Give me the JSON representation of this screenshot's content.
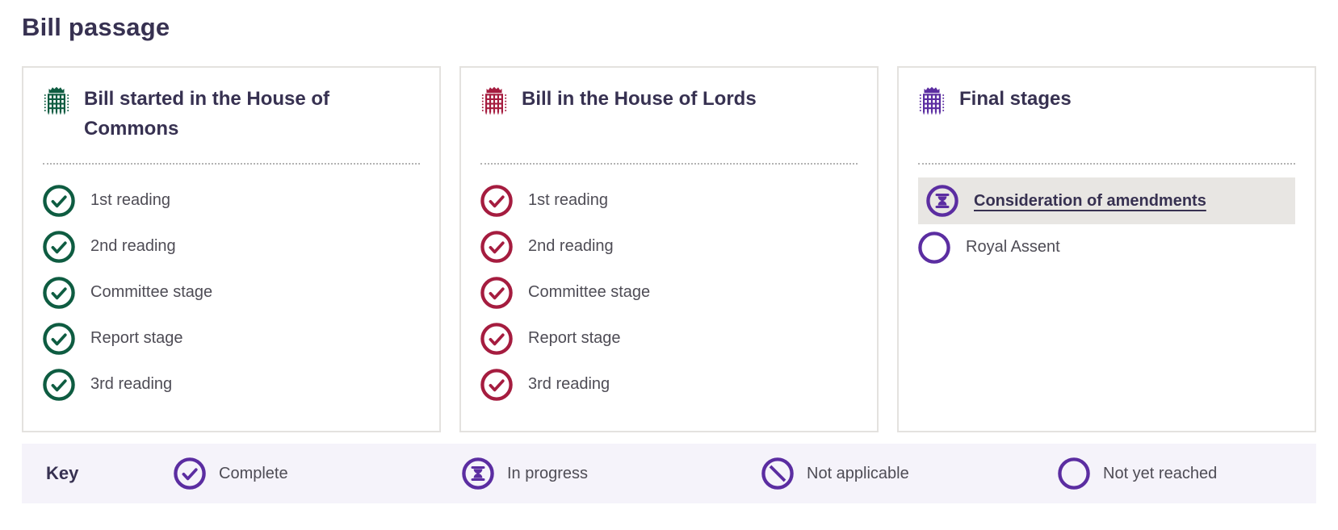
{
  "page": {
    "title": "Bill passage"
  },
  "colors": {
    "commons_green": "#0e5c41",
    "lords_red": "#a51c3f",
    "royal_purple": "#5b2da1",
    "heading_navy": "#373151",
    "body_gray": "#4e4c55",
    "highlight_gray": "#e8e6e3",
    "key_bar_lavender": "#f5f3fa"
  },
  "cards": [
    {
      "title": "Bill started in the House of Commons",
      "accent": "commons_green",
      "house_icon": "portcullis-icon",
      "stages": [
        {
          "label": "1st reading",
          "status": "complete"
        },
        {
          "label": "2nd reading",
          "status": "complete"
        },
        {
          "label": "Committee stage",
          "status": "complete"
        },
        {
          "label": "Report stage",
          "status": "complete"
        },
        {
          "label": "3rd reading",
          "status": "complete"
        }
      ]
    },
    {
      "title": "Bill in the House of Lords",
      "accent": "lords_red",
      "house_icon": "portcullis-icon",
      "stages": [
        {
          "label": "1st reading",
          "status": "complete"
        },
        {
          "label": "2nd reading",
          "status": "complete"
        },
        {
          "label": "Committee stage",
          "status": "complete"
        },
        {
          "label": "Report stage",
          "status": "complete"
        },
        {
          "label": "3rd reading",
          "status": "complete"
        }
      ]
    },
    {
      "title": "Final stages",
      "accent": "royal_purple",
      "house_icon": "portcullis-icon",
      "stages": [
        {
          "label": "Consideration of amendments",
          "status": "in_progress",
          "link": true,
          "highlighted": true
        },
        {
          "label": "Royal Assent",
          "status": "not_yet_reached"
        }
      ]
    }
  ],
  "key": {
    "label": "Key",
    "items": [
      {
        "label": "Complete",
        "status": "complete",
        "icon": "complete-icon"
      },
      {
        "label": "In progress",
        "status": "in_progress",
        "icon": "in-progress-icon"
      },
      {
        "label": "Not applicable",
        "status": "not_applicable",
        "icon": "not-applicable-icon"
      },
      {
        "label": "Not yet reached",
        "status": "not_yet_reached",
        "icon": "not-yet-reached-icon"
      }
    ]
  }
}
